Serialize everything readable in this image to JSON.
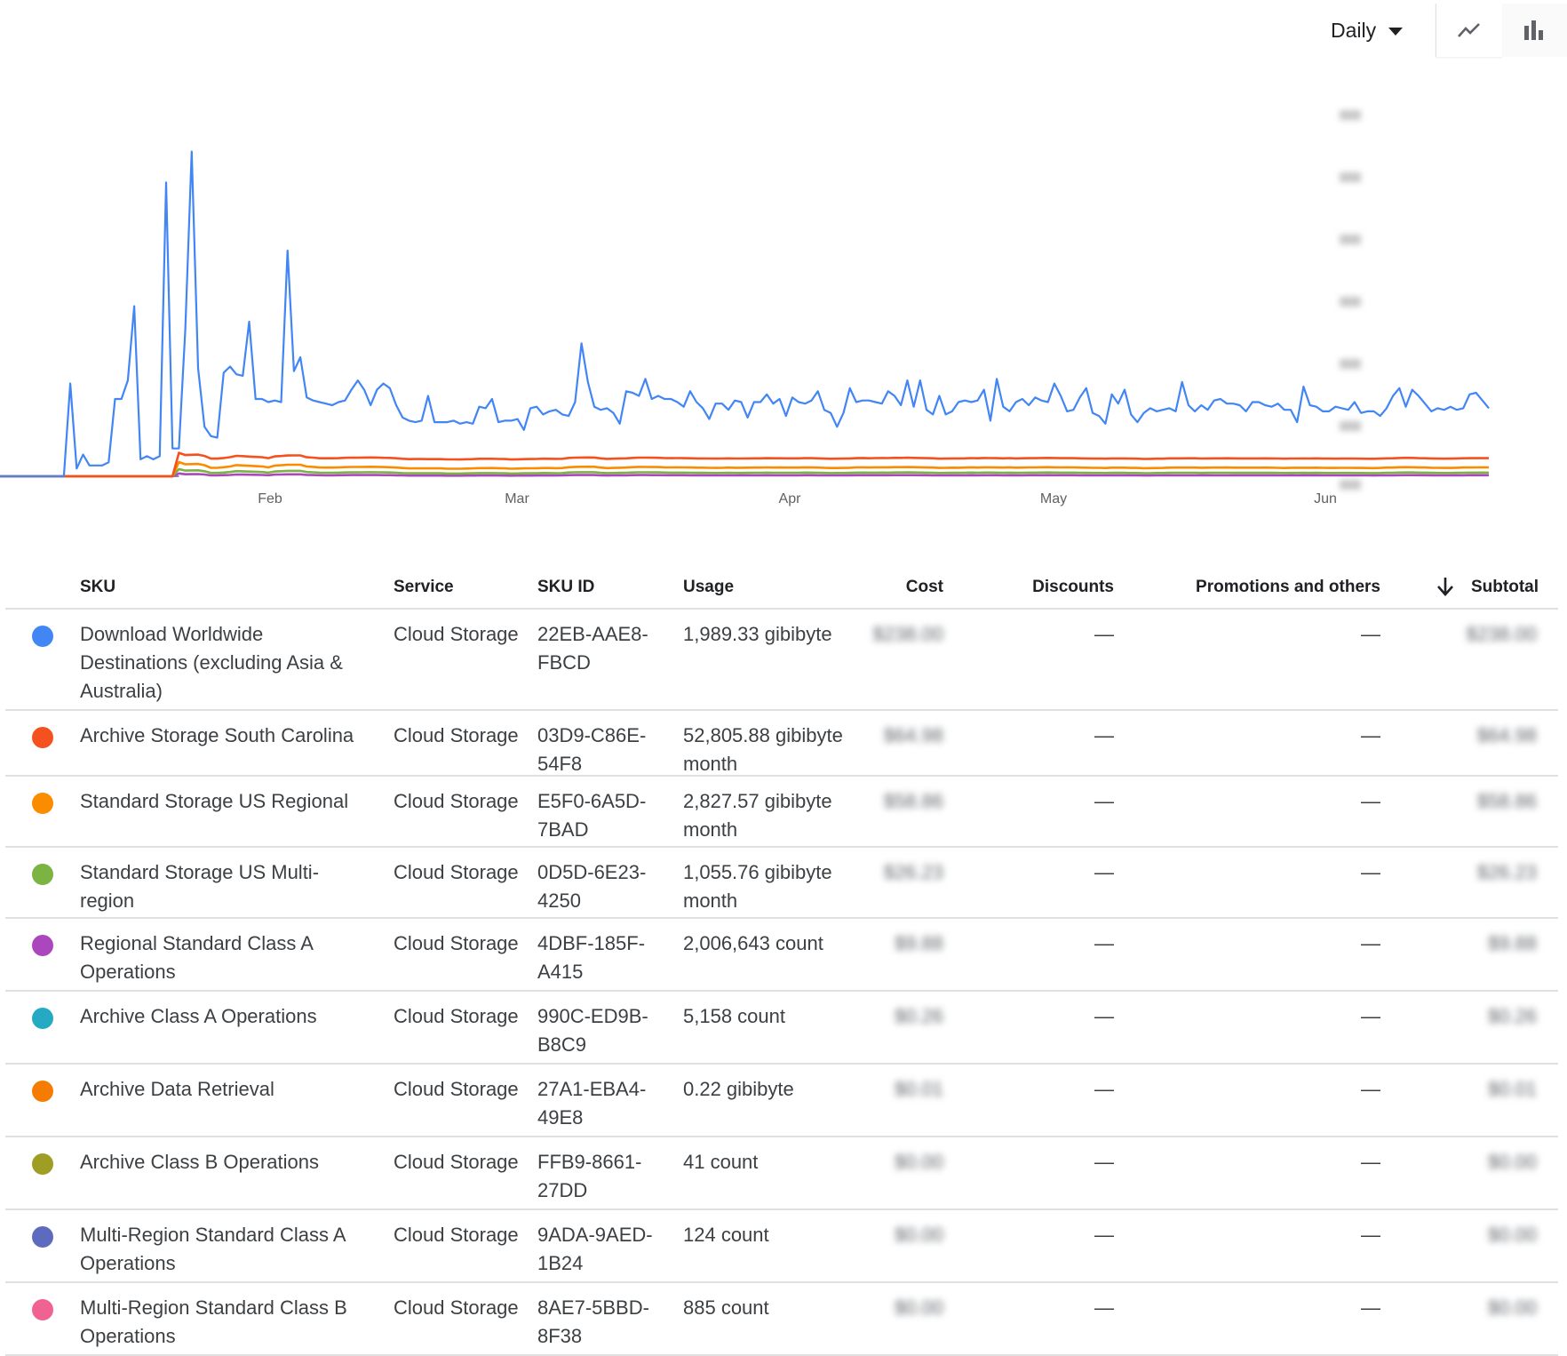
{
  "controls": {
    "period_label": "Daily",
    "period_icon": "caret-down-icon",
    "views": [
      {
        "name": "line-chart-view",
        "icon": "trending-line-icon",
        "active": true
      },
      {
        "name": "bar-chart-view",
        "icon": "bar-chart-icon",
        "active": false
      }
    ]
  },
  "chart_data": {
    "type": "line",
    "x_ticks": [
      "Feb",
      "Mar",
      "Apr",
      "May",
      "Jun"
    ],
    "y_ticks_blurred": true,
    "series_colors": [
      "#4285f4",
      "#f4511e",
      "#fb8c00",
      "#7cb342",
      "#ab47bc"
    ],
    "series": [
      {
        "color": "#4285f4",
        "values": [
          0,
          0,
          0,
          0,
          0,
          0,
          0,
          0,
          0,
          0,
          0,
          60,
          5,
          14,
          7,
          7,
          7,
          9,
          50,
          50,
          62,
          110,
          11,
          13,
          11,
          13,
          190,
          18,
          18,
          95,
          210,
          70,
          32,
          26,
          25,
          67,
          71,
          66,
          65,
          100,
          50,
          50,
          48,
          49,
          48,
          146,
          68,
          77,
          51,
          49,
          48,
          47,
          46,
          48,
          49,
          56,
          62,
          56,
          46,
          56,
          60,
          57,
          46,
          38,
          36,
          35,
          36,
          52,
          35,
          35,
          35,
          36,
          34,
          35,
          34,
          45,
          44,
          50,
          35,
          36,
          36,
          37,
          30,
          44,
          45,
          40,
          42,
          43,
          40,
          39,
          48,
          86,
          61,
          45,
          43,
          44,
          41,
          34,
          55,
          54,
          52,
          63,
          50,
          52,
          50,
          50,
          48,
          45,
          55,
          48,
          44,
          37,
          47,
          47,
          43,
          49,
          48,
          38,
          48,
          48,
          53,
          47,
          50,
          39,
          51,
          48,
          47,
          49,
          55,
          43,
          41,
          32,
          41,
          57,
          48,
          49,
          49,
          48,
          47,
          55,
          52,
          46,
          62,
          45,
          62,
          43,
          40,
          52,
          40,
          42,
          48,
          49,
          48,
          49,
          56,
          36,
          63,
          45,
          42,
          48,
          50,
          46,
          51,
          49,
          48,
          60,
          52,
          42,
          43,
          51,
          57,
          41,
          39,
          34,
          53,
          47,
          56,
          40,
          35,
          41,
          44,
          42,
          43,
          44,
          42,
          61,
          46,
          42,
          46,
          43,
          49,
          50,
          47,
          47,
          46,
          42,
          48,
          48,
          46,
          45,
          47,
          43,
          43,
          35,
          58,
          46,
          45,
          42,
          42,
          45,
          44,
          43,
          48,
          41,
          42,
          42,
          39,
          44,
          52,
          57,
          45,
          56,
          52,
          47,
          42,
          44,
          43,
          45,
          43,
          44,
          53,
          54,
          49,
          44
        ]
      },
      {
        "color": "#f4511e",
        "values": []
      },
      {
        "color": "#fb8c00",
        "values": []
      },
      {
        "color": "#7cb342",
        "values": []
      },
      {
        "color": "#ab47bc",
        "values": []
      }
    ]
  },
  "table": {
    "headers": {
      "sku": "SKU",
      "service": "Service",
      "sku_id": "SKU ID",
      "usage": "Usage",
      "cost": "Cost",
      "discounts": "Discounts",
      "promotions": "Promotions and others",
      "subtotal": "Subtotal"
    },
    "sort_icon": "arrow-down-icon",
    "rows": [
      {
        "color": "#4285f4",
        "sku": "Download Worldwide Destinations (excluding Asia & Australia)",
        "service": "Cloud Storage",
        "sku_id": "22EB-AAE8-FBCD",
        "usage": "1,989.33 gibibyte",
        "cost": "$238.00",
        "discounts": "—",
        "promotions": "—",
        "subtotal": "$238.00"
      },
      {
        "color": "#f4511e",
        "sku": "Archive Storage South Carolina",
        "service": "Cloud Storage",
        "sku_id": "03D9-C86E-54F8",
        "usage": "52,805.88 gibibyte month",
        "cost": "$64.98",
        "discounts": "—",
        "promotions": "—",
        "subtotal": "$64.98"
      },
      {
        "color": "#fb8c00",
        "sku": "Standard Storage US Regional",
        "service": "Cloud Storage",
        "sku_id": "E5F0-6A5D-7BAD",
        "usage": "2,827.57 gibibyte month",
        "cost": "$58.86",
        "discounts": "—",
        "promotions": "—",
        "subtotal": "$58.86"
      },
      {
        "color": "#7cb342",
        "sku": "Standard Storage US Multi-region",
        "service": "Cloud Storage",
        "sku_id": "0D5D-6E23-4250",
        "usage": "1,055.76 gibibyte month",
        "cost": "$26.23",
        "discounts": "—",
        "promotions": "—",
        "subtotal": "$26.23"
      },
      {
        "color": "#ab47bc",
        "sku": "Regional Standard Class A Operations",
        "service": "Cloud Storage",
        "sku_id": "4DBF-185F-A415",
        "usage": "2,006,643 count",
        "cost": "$9.88",
        "discounts": "—",
        "promotions": "—",
        "subtotal": "$9.88"
      },
      {
        "color": "#26a9c2",
        "sku": "Archive Class A Operations",
        "service": "Cloud Storage",
        "sku_id": "990C-ED9B-B8C9",
        "usage": "5,158 count",
        "cost": "$0.26",
        "discounts": "—",
        "promotions": "—",
        "subtotal": "$0.26"
      },
      {
        "color": "#f57c00",
        "sku": "Archive Data Retrieval",
        "service": "Cloud Storage",
        "sku_id": "27A1-EBA4-49E8",
        "usage": "0.22 gibibyte",
        "cost": "$0.01",
        "discounts": "—",
        "promotions": "—",
        "subtotal": "$0.01"
      },
      {
        "color": "#9e9d24",
        "sku": "Archive Class B Operations",
        "service": "Cloud Storage",
        "sku_id": "FFB9-8661-27DD",
        "usage": "41 count",
        "cost": "$0.00",
        "discounts": "—",
        "promotions": "—",
        "subtotal": "$0.00"
      },
      {
        "color": "#5c6bc0",
        "sku": "Multi-Region Standard Class A Operations",
        "service": "Cloud Storage",
        "sku_id": "9ADA-9AED-1B24",
        "usage": "124 count",
        "cost": "$0.00",
        "discounts": "—",
        "promotions": "—",
        "subtotal": "$0.00"
      },
      {
        "color": "#f06292",
        "sku": "Multi-Region Standard Class B Operations",
        "service": "Cloud Storage",
        "sku_id": "8AE7-5BBD-8F38",
        "usage": "885 count",
        "cost": "$0.00",
        "discounts": "—",
        "promotions": "—",
        "subtotal": "$0.00"
      }
    ]
  }
}
